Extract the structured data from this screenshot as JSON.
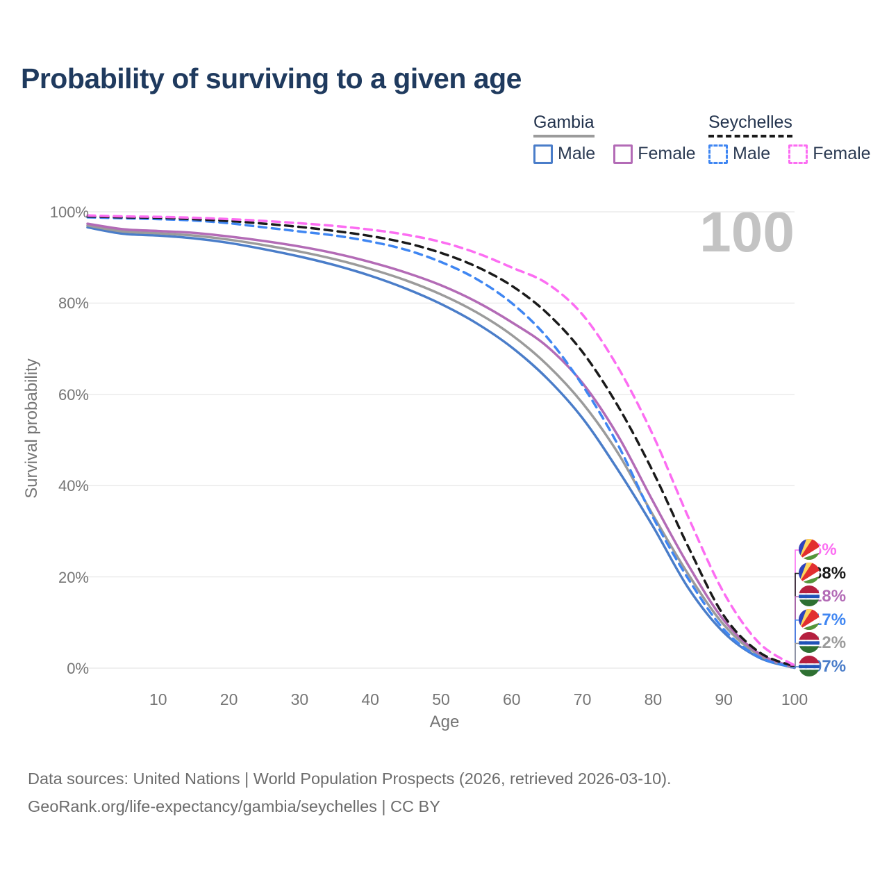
{
  "title": "Probability of surviving to a given age",
  "watermark": "100",
  "legend": {
    "groups": [
      {
        "name": "Gambia",
        "underline_style": "solid",
        "underline_color": "#9b9b9b",
        "items": [
          {
            "label": "Male",
            "color": "#4a7dc9",
            "dashed": false
          },
          {
            "label": "Female",
            "color": "#b36bb6",
            "dashed": false
          }
        ]
      },
      {
        "name": "Seychelles",
        "underline_style": "dashed",
        "underline_color": "#1a1a1a",
        "items": [
          {
            "label": "Male",
            "color": "#3f86f2",
            "dashed": true
          },
          {
            "label": "Female",
            "color": "#fc6df2",
            "dashed": true
          }
        ]
      }
    ]
  },
  "chart_data": {
    "type": "line",
    "title": "Probability of surviving to a given age",
    "xlabel": "Age",
    "ylabel": "Survival probability",
    "xlim": [
      0,
      100
    ],
    "ylim": [
      0,
      100
    ],
    "grid": "horizontal",
    "x_ticks": [
      10,
      20,
      30,
      40,
      50,
      60,
      70,
      80,
      90,
      100
    ],
    "y_ticks": [
      0,
      20,
      40,
      60,
      80,
      100
    ],
    "y_tick_labels": [
      "0%",
      "20%",
      "40%",
      "60%",
      "80%",
      "100%"
    ],
    "x": [
      0,
      5,
      10,
      15,
      20,
      25,
      30,
      35,
      40,
      45,
      50,
      55,
      60,
      65,
      70,
      75,
      80,
      85,
      90,
      95,
      100
    ],
    "series": [
      {
        "name": "Gambia Male",
        "color": "#4a7dc9",
        "dashed": false,
        "values": [
          96.6,
          95.2,
          94.8,
          94.2,
          93.2,
          91.8,
          90.2,
          88.3,
          86.0,
          83.2,
          79.8,
          75.6,
          70.3,
          63.5,
          54.8,
          43.5,
          31.0,
          17.5,
          7.8,
          2.3,
          0.07
        ]
      },
      {
        "name": "Gambia",
        "color": "#9b9b9b",
        "dashed": false,
        "values": [
          97.0,
          95.7,
          95.3,
          94.8,
          93.9,
          92.7,
          91.3,
          89.6,
          87.5,
          85.0,
          81.9,
          78.0,
          73.0,
          66.5,
          58.1,
          47.2,
          33.5,
          20.5,
          9.5,
          2.8,
          0.12
        ]
      },
      {
        "name": "Gambia Female",
        "color": "#b36bb6",
        "dashed": false,
        "values": [
          97.4,
          96.2,
          95.8,
          95.4,
          94.6,
          93.6,
          92.4,
          90.9,
          89.0,
          86.7,
          83.9,
          80.3,
          75.8,
          70.5,
          62.5,
          51.0,
          36.5,
          22.5,
          10.5,
          3.2,
          0.18
        ]
      },
      {
        "name": "Seychelles Male",
        "color": "#3f86f2",
        "dashed": true,
        "values": [
          98.8,
          98.6,
          98.4,
          98.1,
          97.5,
          96.6,
          95.7,
          94.8,
          93.5,
          91.7,
          89.0,
          85.3,
          80.0,
          72.5,
          62.0,
          49.0,
          33.0,
          19.5,
          8.5,
          2.4,
          0.17
        ]
      },
      {
        "name": "Seychelles",
        "color": "#1a1a1a",
        "dashed": true,
        "values": [
          99.0,
          98.8,
          98.7,
          98.4,
          98.0,
          97.4,
          96.7,
          95.8,
          94.7,
          93.2,
          91.0,
          88.0,
          83.8,
          77.8,
          69.3,
          57.5,
          43.0,
          26.5,
          11.5,
          3.5,
          0.38
        ]
      },
      {
        "name": "Seychelles Female",
        "color": "#fc6df2",
        "dashed": true,
        "values": [
          99.2,
          99.0,
          98.9,
          98.7,
          98.4,
          98.0,
          97.5,
          96.9,
          96.1,
          95.0,
          93.4,
          91.0,
          87.8,
          84.3,
          77.5,
          66.0,
          51.0,
          33.0,
          16.5,
          5.5,
          0.6
        ]
      }
    ],
    "end_labels": [
      {
        "text": "0.6%",
        "value": 0.6,
        "flag": "seychelles",
        "color": "#fc6df2"
      },
      {
        "text": "0.38%",
        "value": 0.38,
        "flag": "seychelles",
        "color": "#1a1a1a"
      },
      {
        "text": "0.18%",
        "value": 0.18,
        "flag": "gambia",
        "color": "#b36bb6"
      },
      {
        "text": "0.17%",
        "value": 0.17,
        "flag": "seychelles",
        "color": "#3f86f2"
      },
      {
        "text": "0.12%",
        "value": 0.12,
        "flag": "gambia",
        "color": "#9b9b9b"
      },
      {
        "text": "0.07%",
        "value": 0.07,
        "flag": "gambia",
        "color": "#4a7dc9"
      }
    ],
    "flag_colors": {
      "gambia": {
        "red": "#b51f3f",
        "white": "#ffffff",
        "blue": "#2052b8",
        "green": "#2e7032"
      },
      "seychelles": {
        "blue": "#2b44bf",
        "yellow": "#fcd75f",
        "red": "#e22f2f",
        "white": "#ffffff",
        "green": "#52973a"
      }
    },
    "grid_color": "#e8e8e8",
    "legend_position": "top-right"
  },
  "footer": {
    "line1": "Data sources: United Nations | World Population Prospects (2026, retrieved 2026-03-10).",
    "line2": "GeoRank.org/life-expectancy/gambia/seychelles | CC BY"
  }
}
